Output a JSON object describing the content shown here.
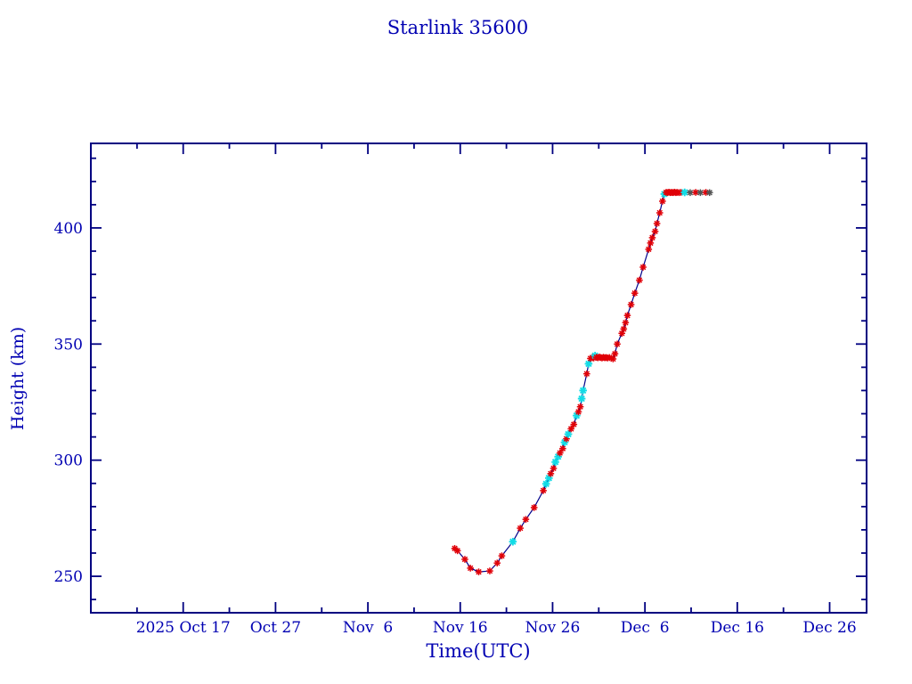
{
  "colors": {
    "background": "#ffffff",
    "text": "#0000b2",
    "frame": "#000080",
    "line": "#00008b",
    "marker_red": "#e00008",
    "marker_cyan": "#12dce6",
    "marker_dark": "#555555"
  },
  "chart_data": {
    "type": "line",
    "title": "Starlink 35600",
    "xlabel": "Time(UTC)",
    "ylabel": "Height (km)",
    "grid": false,
    "legend": false,
    "x_axis": {
      "unit": "days_after_2025_Oct_17_00UTC",
      "range_days": [
        -10,
        74
      ],
      "major_ticks": [
        {
          "day": 0,
          "label": "2025 Oct 17"
        },
        {
          "day": 10,
          "label": "Oct 27"
        },
        {
          "day": 20,
          "label": "Nov  6"
        },
        {
          "day": 30,
          "label": "Nov 16"
        },
        {
          "day": 40,
          "label": "Nov 26"
        },
        {
          "day": 50,
          "label": "Dec  6"
        },
        {
          "day": 60,
          "label": "Dec 16"
        },
        {
          "day": 70,
          "label": "Dec 26"
        }
      ],
      "minor_tick_days": [
        -5,
        5,
        15,
        25,
        35,
        45,
        55,
        65
      ]
    },
    "y_axis": {
      "unit": "km",
      "range": [
        234.3,
        436.4
      ],
      "major_ticks": [
        250,
        300,
        350,
        400
      ],
      "minor_ticks": [
        240,
        260,
        270,
        280,
        290,
        310,
        320,
        330,
        340,
        360,
        370,
        380,
        390,
        410,
        420,
        430
      ]
    },
    "point_format": [
      "days_after_2025_Oct_17",
      "height_km",
      "marker_color_key"
    ],
    "marker_color_keys": {
      "r": "red",
      "c": "cyan",
      "k": "dark"
    },
    "series": [
      {
        "name": "orbit_height",
        "points": [
          [
            29.4,
            262.0,
            "r"
          ],
          [
            29.7,
            261.0,
            "r"
          ],
          [
            30.5,
            257.3,
            "r"
          ],
          [
            31.1,
            253.5,
            "r"
          ],
          [
            32.0,
            251.9,
            "r"
          ],
          [
            33.2,
            252.3,
            "r"
          ],
          [
            34.0,
            255.7,
            "r"
          ],
          [
            34.5,
            258.8,
            "r"
          ],
          [
            35.7,
            264.9,
            "c"
          ],
          [
            36.5,
            270.7,
            "r"
          ],
          [
            37.1,
            274.5,
            "r"
          ],
          [
            38.0,
            279.6,
            "r"
          ],
          [
            39.0,
            286.9,
            "r"
          ],
          [
            39.3,
            289.8,
            "c"
          ],
          [
            39.6,
            292.3,
            "c"
          ],
          [
            39.8,
            294.2,
            "r"
          ],
          [
            40.1,
            296.5,
            "r"
          ],
          [
            40.3,
            299.2,
            "c"
          ],
          [
            40.6,
            301.5,
            "c"
          ],
          [
            40.8,
            303.1,
            "r"
          ],
          [
            41.1,
            305.0,
            "r"
          ],
          [
            41.3,
            307.7,
            "c"
          ],
          [
            41.5,
            309.2,
            "r"
          ],
          [
            41.7,
            311.2,
            "c"
          ],
          [
            42.0,
            313.5,
            "r"
          ],
          [
            42.3,
            315.4,
            "r"
          ],
          [
            42.6,
            319.2,
            "c"
          ],
          [
            42.8,
            320.8,
            "r"
          ],
          [
            43.0,
            323.0,
            "r"
          ],
          [
            43.15,
            326.5,
            "c"
          ],
          [
            43.3,
            330.0,
            "c"
          ],
          [
            43.7,
            337.2,
            "r"
          ],
          [
            43.9,
            341.5,
            "c"
          ],
          [
            44.1,
            343.8,
            "r"
          ],
          [
            44.3,
            344.2,
            "r"
          ],
          [
            44.45,
            344.0,
            "r"
          ],
          [
            44.6,
            345.0,
            "c"
          ],
          [
            44.75,
            344.3,
            "r"
          ],
          [
            44.9,
            344.1,
            "r"
          ],
          [
            45.05,
            344.4,
            "r"
          ],
          [
            45.2,
            344.2,
            "r"
          ],
          [
            45.35,
            344.0,
            "r"
          ],
          [
            45.5,
            344.3,
            "r"
          ],
          [
            45.65,
            344.1,
            "r"
          ],
          [
            45.8,
            344.2,
            "r"
          ],
          [
            45.95,
            344.0,
            "r"
          ],
          [
            46.15,
            344.2,
            "r"
          ],
          [
            46.35,
            343.9,
            "r"
          ],
          [
            46.55,
            343.6,
            "r"
          ],
          [
            46.75,
            345.8,
            "r"
          ],
          [
            47.0,
            350.0,
            "r"
          ],
          [
            47.5,
            354.6,
            "r"
          ],
          [
            47.7,
            356.5,
            "r"
          ],
          [
            47.9,
            359.2,
            "r"
          ],
          [
            48.1,
            362.3,
            "r"
          ],
          [
            48.5,
            367.0,
            "r"
          ],
          [
            48.9,
            371.9,
            "r"
          ],
          [
            49.4,
            377.5,
            "r"
          ],
          [
            49.8,
            383.1,
            "r"
          ],
          [
            50.4,
            390.8,
            "r"
          ],
          [
            50.6,
            393.5,
            "r"
          ],
          [
            50.8,
            395.8,
            "r"
          ],
          [
            51.1,
            398.5,
            "r"
          ],
          [
            51.3,
            401.9,
            "r"
          ],
          [
            51.6,
            406.5,
            "r"
          ],
          [
            51.9,
            411.5,
            "r"
          ],
          [
            52.1,
            414.6,
            "c"
          ],
          [
            52.3,
            415.3,
            "r"
          ],
          [
            52.45,
            415.2,
            "r"
          ],
          [
            52.6,
            415.4,
            "r"
          ],
          [
            52.75,
            415.2,
            "r"
          ],
          [
            52.9,
            415.3,
            "r"
          ],
          [
            53.05,
            415.2,
            "r"
          ],
          [
            53.2,
            415.4,
            "r"
          ],
          [
            53.35,
            415.2,
            "r"
          ],
          [
            53.5,
            415.3,
            "r"
          ],
          [
            53.7,
            415.2,
            "r"
          ],
          [
            53.9,
            415.3,
            "r"
          ],
          [
            54.3,
            415.3,
            "c"
          ],
          [
            54.9,
            415.2,
            "k"
          ],
          [
            55.5,
            415.3,
            "r"
          ],
          [
            56.0,
            415.2,
            "k"
          ],
          [
            56.6,
            415.3,
            "r"
          ],
          [
            57.0,
            415.2,
            "k"
          ]
        ]
      }
    ]
  }
}
